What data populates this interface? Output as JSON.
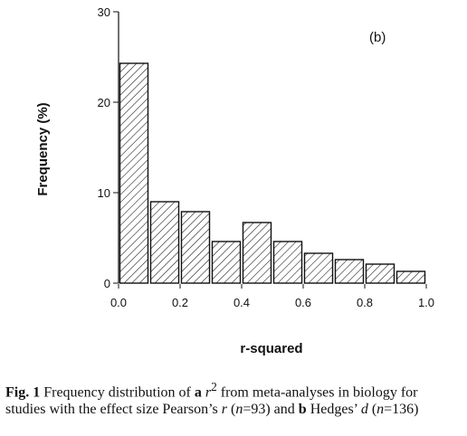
{
  "chart_data": {
    "type": "bar",
    "panel_label": "(b)",
    "xlabel": "r-squared",
    "ylabel": "Frequency (%)",
    "xlim": [
      0,
      1
    ],
    "ylim": [
      0,
      30
    ],
    "bin_width": 0.1,
    "bin_starts": [
      0.0,
      0.1,
      0.2,
      0.3,
      0.4,
      0.5,
      0.6,
      0.7,
      0.8,
      0.9
    ],
    "values": [
      24.3,
      9.0,
      7.9,
      4.6,
      6.7,
      4.6,
      3.3,
      2.6,
      2.1,
      1.3
    ],
    "x_ticks": [
      "0.0",
      "0.2",
      "0.4",
      "0.6",
      "0.8",
      "1.0"
    ],
    "x_tick_values": [
      0,
      0.2,
      0.4,
      0.6,
      0.8,
      1.0
    ],
    "y_ticks": [
      "0",
      "10",
      "20",
      "30"
    ],
    "y_tick_values": [
      0,
      10,
      20,
      30
    ],
    "bar_fill": "diagonal-hatch"
  },
  "caption": {
    "fig_label": "Fig. 1",
    "t1": " Frequency distribution of ",
    "a": "a",
    "r_sym": "r",
    "sup": "2",
    "t2": " from meta-analyses in biology for studies with the effect size Pearson’s ",
    "r2": "r",
    "t3": " (",
    "n1": "n",
    "t4": "=93) and ",
    "b": "b",
    "t5": " Hedges’ ",
    "d": "d",
    "t6": " (",
    "n2": "n",
    "t7": "=136)"
  }
}
